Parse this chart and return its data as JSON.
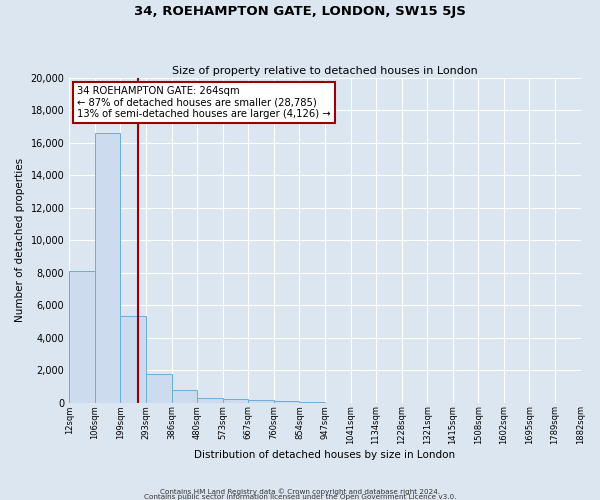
{
  "title": "34, ROEHAMPTON GATE, LONDON, SW15 5JS",
  "subtitle": "Size of property relative to detached houses in London",
  "xlabel": "Distribution of detached houses by size in London",
  "ylabel": "Number of detached properties",
  "bin_labels": [
    "12sqm",
    "106sqm",
    "199sqm",
    "293sqm",
    "386sqm",
    "480sqm",
    "573sqm",
    "667sqm",
    "760sqm",
    "854sqm",
    "947sqm",
    "1041sqm",
    "1134sqm",
    "1228sqm",
    "1321sqm",
    "1415sqm",
    "1508sqm",
    "1602sqm",
    "1695sqm",
    "1789sqm",
    "1882sqm"
  ],
  "bin_edges": [
    12,
    106,
    199,
    293,
    386,
    480,
    573,
    667,
    760,
    854,
    947,
    1041,
    1134,
    1228,
    1321,
    1415,
    1508,
    1602,
    1695,
    1789,
    1882
  ],
  "bar_heights": [
    8100,
    16600,
    5300,
    1750,
    800,
    280,
    230,
    130,
    75,
    55,
    0,
    0,
    0,
    0,
    0,
    0,
    0,
    0,
    0,
    0
  ],
  "bar_color": "#ccdcee",
  "bar_edge_color": "#6aaed6",
  "property_size": 264,
  "red_line_color": "#990000",
  "annotation_line1": "34 ROEHAMPTON GATE: 264sqm",
  "annotation_line2": "← 87% of detached houses are smaller (28,785)",
  "annotation_line3": "13% of semi-detached houses are larger (4,126) →",
  "annotation_box_color": "#ffffff",
  "annotation_box_edge": "#990000",
  "ylim": [
    0,
    20000
  ],
  "yticks": [
    0,
    2000,
    4000,
    6000,
    8000,
    10000,
    12000,
    14000,
    16000,
    18000,
    20000
  ],
  "background_color": "#dce6f0",
  "grid_color": "#ffffff",
  "footer_line1": "Contains HM Land Registry data © Crown copyright and database right 2024.",
  "footer_line2": "Contains public sector information licensed under the Open Government Licence v3.0."
}
